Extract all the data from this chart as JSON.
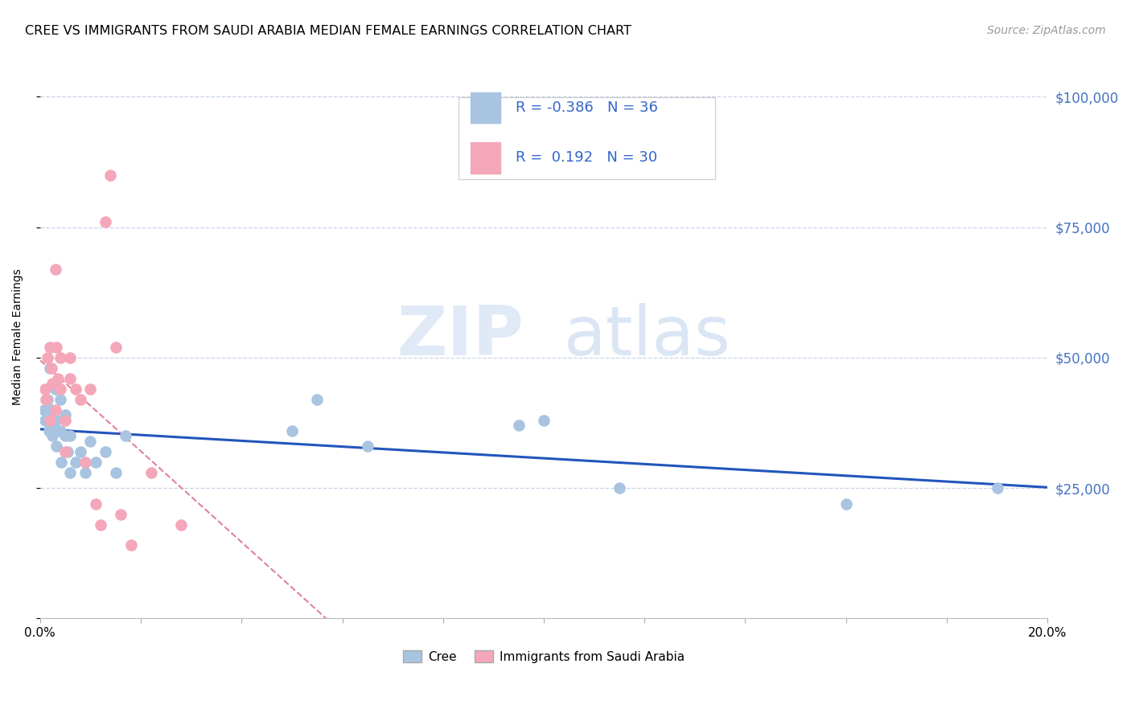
{
  "title": "CREE VS IMMIGRANTS FROM SAUDI ARABIA MEDIAN FEMALE EARNINGS CORRELATION CHART",
  "source": "Source: ZipAtlas.com",
  "ylabel": "Median Female Earnings",
  "xlim": [
    0.0,
    0.2
  ],
  "ylim": [
    0,
    108000
  ],
  "yticks": [
    0,
    25000,
    50000,
    75000,
    100000
  ],
  "ytick_labels": [
    "",
    "$25,000",
    "$50,000",
    "$75,000",
    "$100,000"
  ],
  "watermark_zip": "ZIP",
  "watermark_atlas": "atlas",
  "cree_R": -0.386,
  "cree_N": 36,
  "saudi_R": 0.192,
  "saudi_N": 30,
  "cree_color": "#a8c4e0",
  "saudi_color": "#f4a7b9",
  "cree_line_color": "#2255bb",
  "saudi_line_color": "#e080a0",
  "cree_x": [
    0.0008,
    0.001,
    0.0015,
    0.0018,
    0.002,
    0.002,
    0.0022,
    0.0025,
    0.003,
    0.003,
    0.0032,
    0.0035,
    0.004,
    0.004,
    0.0042,
    0.005,
    0.005,
    0.0055,
    0.006,
    0.006,
    0.007,
    0.008,
    0.009,
    0.01,
    0.011,
    0.013,
    0.015,
    0.017,
    0.05,
    0.055,
    0.065,
    0.095,
    0.1,
    0.115,
    0.16,
    0.19
  ],
  "cree_y": [
    40000,
    38000,
    42000,
    36000,
    48000,
    37000,
    40000,
    35000,
    44000,
    38000,
    33000,
    36000,
    42000,
    36000,
    30000,
    39000,
    35000,
    32000,
    35000,
    28000,
    30000,
    32000,
    28000,
    34000,
    30000,
    32000,
    28000,
    35000,
    36000,
    42000,
    33000,
    37000,
    38000,
    25000,
    22000,
    25000
  ],
  "saudi_x": [
    0.001,
    0.0012,
    0.0015,
    0.002,
    0.002,
    0.0022,
    0.0025,
    0.003,
    0.003,
    0.0032,
    0.0035,
    0.004,
    0.004,
    0.005,
    0.005,
    0.006,
    0.006,
    0.007,
    0.008,
    0.009,
    0.01,
    0.011,
    0.012,
    0.013,
    0.014,
    0.015,
    0.016,
    0.018,
    0.022,
    0.028
  ],
  "saudi_y": [
    44000,
    42000,
    50000,
    38000,
    52000,
    48000,
    45000,
    67000,
    40000,
    52000,
    46000,
    50000,
    44000,
    38000,
    32000,
    50000,
    46000,
    44000,
    42000,
    30000,
    44000,
    22000,
    18000,
    76000,
    85000,
    52000,
    20000,
    14000,
    28000,
    18000
  ],
  "background_color": "#ffffff",
  "grid_color": "#c8d4e8",
  "title_fontsize": 11.5,
  "axis_label_fontsize": 10,
  "tick_fontsize": 11,
  "source_fontsize": 10
}
